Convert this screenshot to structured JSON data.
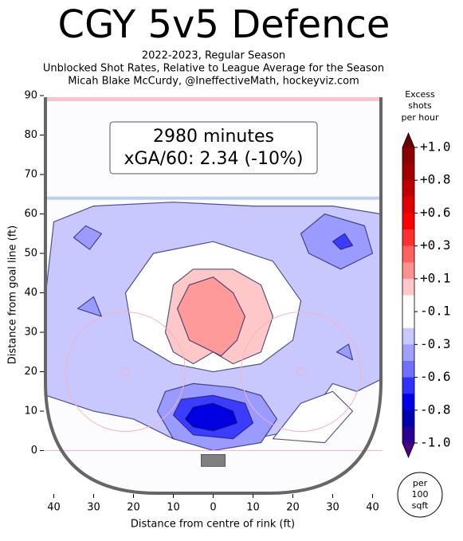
{
  "chart_data": {
    "type": "contour",
    "title": "CGY 5v5 Defence",
    "subtitle": [
      "2022-2023, Regular Season",
      "Unblocked Shot Rates, Relative to League Average for the Season",
      "Micah Blake McCurdy, @IneffectiveMath, hockeyviz.com"
    ],
    "annotation": [
      "2980 minutes",
      "xGA/60: 2.34 (-10%)"
    ],
    "x_label": "Distance from centre of rink (ft)",
    "y_label": "Distance from goal line (ft)",
    "xlim": [
      -42.5,
      42.5
    ],
    "ylim": [
      -11,
      90
    ],
    "xticks": [
      {
        "value": -40,
        "label": "40"
      },
      {
        "value": -30,
        "label": "30"
      },
      {
        "value": -20,
        "label": "20"
      },
      {
        "value": -10,
        "label": "10"
      },
      0,
      10,
      20,
      30,
      40
    ],
    "yticks": [
      0,
      10,
      20,
      30,
      40,
      50,
      60,
      70,
      80,
      90
    ],
    "colorbar_label": [
      "Excess",
      "shots",
      "per hour"
    ],
    "colorbar_ticks": [
      {
        "value": 1,
        "label": "+1.0"
      },
      {
        "value": 0.8,
        "label": "+0.8"
      },
      {
        "value": 0.6,
        "label": "+0.6"
      },
      {
        "value": 0.3,
        "label": "+0.3"
      },
      {
        "value": 0.1,
        "label": "+0.1"
      },
      {
        "value": -0.1,
        "label": "-0.1"
      },
      {
        "value": -0.3,
        "label": "-0.3"
      },
      {
        "value": -0.6,
        "label": "-0.6"
      },
      {
        "value": -0.8,
        "label": "-0.8"
      },
      {
        "value": -1,
        "label": "-1.0"
      }
    ],
    "colorbar_colors": [
      "#8b0000",
      "#a00000",
      "#c00000",
      "#e00000",
      "#ff0000",
      "#ff3030",
      "#ff6060",
      "#ff9090",
      "#ffc8c8",
      "#ffffff",
      "#ffffff",
      "#c8c8ff",
      "#a0a0ff",
      "#7070ff",
      "#3030ff",
      "#0000e8",
      "#0000b0",
      "#2a0090"
    ],
    "colorbar_extend_colors": [
      "#6b0000",
      "#4b0082"
    ],
    "unit_note": [
      "per",
      "100",
      "sqft"
    ],
    "regions": [
      {
        "level": -0.1,
        "color": "#c8c8ff",
        "points": [
          [
            -42,
            40
          ],
          [
            -40,
            58
          ],
          [
            -30,
            62
          ],
          [
            -10,
            63
          ],
          [
            10,
            62
          ],
          [
            30,
            62
          ],
          [
            42,
            60
          ],
          [
            42,
            18
          ],
          [
            36,
            15
          ],
          [
            30,
            17
          ],
          [
            25,
            10
          ],
          [
            20,
            5
          ],
          [
            10,
            3
          ],
          [
            0,
            2
          ],
          [
            -10,
            3
          ],
          [
            -20,
            8
          ],
          [
            -30,
            10
          ],
          [
            -42,
            14
          ]
        ]
      },
      {
        "level": 0,
        "color": "#ffffff",
        "points": [
          [
            -22,
            40
          ],
          [
            -15,
            50
          ],
          [
            0,
            53
          ],
          [
            15,
            48
          ],
          [
            22,
            38
          ],
          [
            20,
            28
          ],
          [
            12,
            22
          ],
          [
            0,
            20
          ],
          [
            -10,
            22
          ],
          [
            -20,
            28
          ]
        ]
      },
      {
        "level": 0,
        "color": "#ffffff",
        "points": [
          [
            15,
            3
          ],
          [
            28,
            2
          ],
          [
            35,
            10
          ],
          [
            30,
            15
          ],
          [
            22,
            12
          ]
        ]
      },
      {
        "level": 0.1,
        "color": "#ffc8c8",
        "points": [
          [
            -12,
            30
          ],
          [
            -10,
            42
          ],
          [
            -5,
            46
          ],
          [
            5,
            46
          ],
          [
            12,
            42
          ],
          [
            15,
            34
          ],
          [
            12,
            25
          ],
          [
            5,
            22
          ],
          [
            0,
            25
          ],
          [
            -5,
            22
          ],
          [
            -10,
            25
          ]
        ]
      },
      {
        "level": 0.3,
        "color": "#ff9a9a",
        "points": [
          [
            -9,
            36
          ],
          [
            -6,
            42
          ],
          [
            0,
            44
          ],
          [
            5,
            40
          ],
          [
            8,
            34
          ],
          [
            6,
            28
          ],
          [
            2,
            24
          ],
          [
            -2,
            26
          ],
          [
            -6,
            28
          ]
        ]
      },
      {
        "level": -0.3,
        "color": "#9a9aff",
        "points": [
          [
            -35,
            54
          ],
          [
            -32,
            57
          ],
          [
            -28,
            55
          ],
          [
            -31,
            51
          ]
        ]
      },
      {
        "level": -0.3,
        "color": "#9a9aff",
        "points": [
          [
            22,
            55
          ],
          [
            28,
            60
          ],
          [
            38,
            57
          ],
          [
            40,
            50
          ],
          [
            32,
            46
          ],
          [
            24,
            50
          ]
        ]
      },
      {
        "level": -0.3,
        "color": "#9a9aff",
        "points": [
          [
            -34,
            36
          ],
          [
            -30,
            39
          ],
          [
            -28,
            34
          ]
        ]
      },
      {
        "level": -0.3,
        "color": "#9a9aff",
        "points": [
          [
            31,
            25
          ],
          [
            34,
            27
          ],
          [
            35,
            23
          ]
        ]
      },
      {
        "level": -0.3,
        "color": "#9a9aff",
        "points": [
          [
            -14,
            10
          ],
          [
            -12,
            15
          ],
          [
            -5,
            17
          ],
          [
            5,
            16
          ],
          [
            12,
            14
          ],
          [
            16,
            8
          ],
          [
            12,
            2
          ],
          [
            0,
            0
          ],
          [
            -10,
            3
          ]
        ]
      },
      {
        "level": -0.6,
        "color": "#3c3cff",
        "points": [
          [
            30,
            53
          ],
          [
            33,
            55
          ],
          [
            35,
            52
          ],
          [
            32,
            51
          ]
        ]
      },
      {
        "level": -0.6,
        "color": "#3c3cff",
        "points": [
          [
            -10,
            9
          ],
          [
            -8,
            13
          ],
          [
            0,
            14
          ],
          [
            8,
            12
          ],
          [
            10,
            7
          ],
          [
            5,
            3
          ],
          [
            -5,
            4
          ]
        ]
      },
      {
        "level": -0.8,
        "color": "#0000e0",
        "points": [
          [
            -7,
            8
          ],
          [
            -5,
            11
          ],
          [
            0,
            12
          ],
          [
            5,
            10
          ],
          [
            6,
            7
          ],
          [
            0,
            5
          ],
          [
            -5,
            6
          ]
        ]
      }
    ]
  }
}
